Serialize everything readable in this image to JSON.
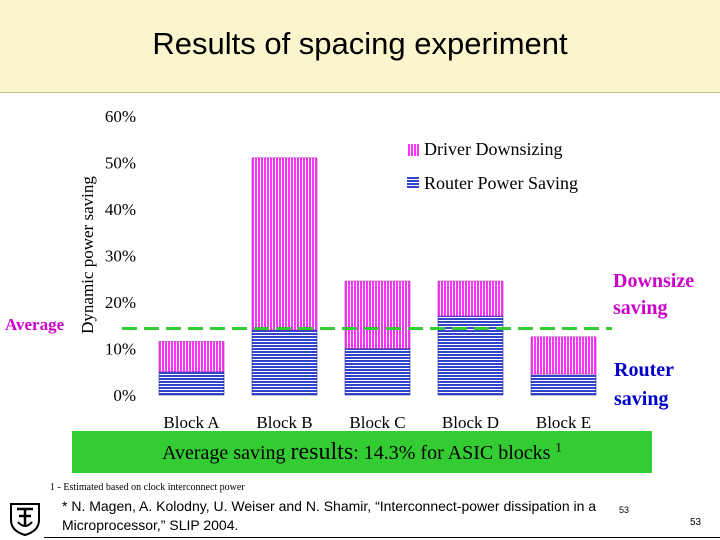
{
  "slide": {
    "title": "Results of spacing experiment",
    "average_label": "Average",
    "downsize_label_1": "Downsize",
    "downsize_label_2": "saving",
    "router_label_1": "Router",
    "router_label_2": "saving",
    "avg_saving_prefix": "Average saving ",
    "avg_saving_results": "results",
    "avg_saving_suffix": ": 14.3% for ASIC blocks ",
    "avg_saving_sup": "1",
    "footnote": "1 - Estimated based on clock interconnect power",
    "reference_line1": "* N. Magen, A. Kolodny, U. Weiser and N. Shamir, “Interconnect-power dissipation in a",
    "reference_line2": "Microprocessor,” SLIP 2004.",
    "slide_number_small": "53",
    "slide_number": "53",
    "logo_icon": "technion-logo-icon",
    "colors": {
      "title_bg": "#fbf4cc",
      "driver": "#ff33ff",
      "router": "#3344cc",
      "average_line": "#33cc33",
      "callout_text": "#cc00cc",
      "router_text": "#0000cc"
    }
  },
  "chart_data": {
    "type": "bar",
    "stacked": true,
    "categories": [
      "Block A",
      "Block B",
      "Block C",
      "Block D",
      "Block E"
    ],
    "series": [
      {
        "name": "Router Power Saving",
        "values": [
          5,
          14,
          10,
          17,
          4.5
        ]
      },
      {
        "name": "Driver Downsizing",
        "values": [
          6.5,
          37,
          14.5,
          7.5,
          8
        ]
      }
    ],
    "ylabel": "Dynamic power saving",
    "xlabel": "",
    "ylim": [
      0,
      60
    ],
    "yticks": [
      "0%",
      "10%",
      "20%",
      "30%",
      "40%",
      "50%",
      "60%"
    ],
    "ytick_values": [
      0,
      10,
      20,
      30,
      40,
      50,
      60
    ],
    "average_value": 14.3,
    "legend_position": "top-right",
    "grid": false
  }
}
